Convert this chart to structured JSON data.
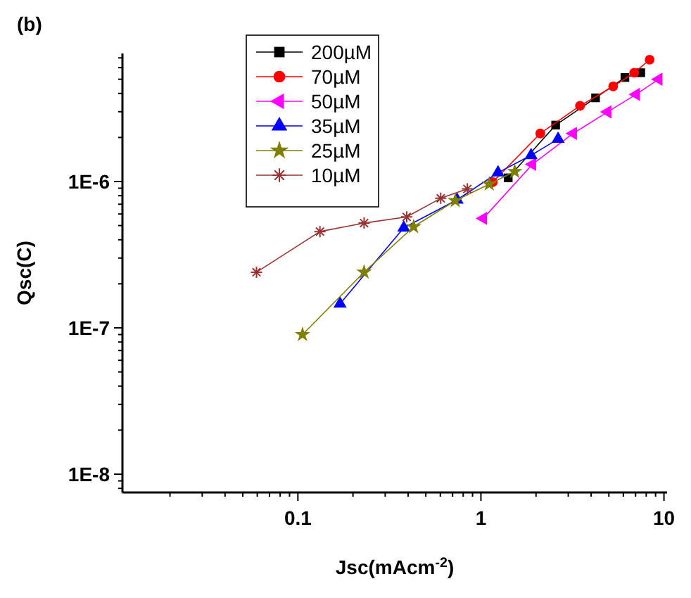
{
  "chart_data": {
    "type": "line",
    "title": "(b)",
    "xlabel": "Jsc(mAcm$^{-2}$)",
    "ylabel": "Qsc(C)",
    "log": "xy",
    "grid": false,
    "legend": "top left",
    "xlim": [
      0.011,
      10.4
    ],
    "ylim": [
      7.5e-09,
      7.5e-06
    ],
    "xticks": [
      {
        "value": 0.02,
        "label": null
      },
      {
        "value": 0.03,
        "label": null
      },
      {
        "value": 0.04,
        "label": null
      },
      {
        "value": 0.05,
        "label": null
      },
      {
        "value": 0.06,
        "label": null
      },
      {
        "value": 0.07,
        "label": null
      },
      {
        "value": 0.08,
        "label": null
      },
      {
        "value": 0.09,
        "label": null
      },
      0.1,
      {
        "value": 0.2,
        "label": null
      },
      {
        "value": 0.3,
        "label": null
      },
      {
        "value": 0.4,
        "label": null
      },
      {
        "value": 0.5,
        "label": null
      },
      {
        "value": 0.6,
        "label": null
      },
      {
        "value": 0.7,
        "label": null
      },
      {
        "value": 0.8,
        "label": null
      },
      {
        "value": 0.9,
        "label": null
      },
      1,
      {
        "value": 2,
        "label": null
      },
      {
        "value": 3,
        "label": null
      },
      {
        "value": 4,
        "label": null
      },
      {
        "value": 5,
        "label": null
      },
      {
        "value": 6,
        "label": null
      },
      {
        "value": 7,
        "label": null
      },
      {
        "value": 8,
        "label": null
      },
      {
        "value": 9,
        "label": null
      },
      10
    ],
    "yticks": [
      {
        "value": 8e-09,
        "label": null
      },
      {
        "value": 9e-09,
        "label": null
      },
      {
        "value": 1e-08,
        "label": "1E-8"
      },
      {
        "value": 2e-08,
        "label": null
      },
      {
        "value": 3e-08,
        "label": null
      },
      {
        "value": 4e-08,
        "label": null
      },
      {
        "value": 5e-08,
        "label": null
      },
      {
        "value": 6e-08,
        "label": null
      },
      {
        "value": 7e-08,
        "label": null
      },
      {
        "value": 8e-08,
        "label": null
      },
      {
        "value": 9e-08,
        "label": null
      },
      {
        "value": 1e-07,
        "label": "1E-7"
      },
      {
        "value": 2e-07,
        "label": null
      },
      {
        "value": 3e-07,
        "label": null
      },
      {
        "value": 4e-07,
        "label": null
      },
      {
        "value": 5e-07,
        "label": null
      },
      {
        "value": 6e-07,
        "label": null
      },
      {
        "value": 7e-07,
        "label": null
      },
      {
        "value": 8e-07,
        "label": null
      },
      {
        "value": 9e-07,
        "label": null
      },
      {
        "value": 1e-06,
        "label": "1E-6"
      },
      {
        "value": 2e-06,
        "label": null
      },
      {
        "value": 3e-06,
        "label": null
      },
      {
        "value": 4e-06,
        "label": null
      },
      {
        "value": 5e-06,
        "label": null
      },
      {
        "value": 6e-06,
        "label": null
      },
      {
        "value": 7e-06,
        "label": null
      }
    ],
    "series": [
      {
        "name": "200µM",
        "color": "#000000",
        "marker": "square",
        "x": [
          1.41,
          2.56,
          4.23,
          6.12,
          7.47
        ],
        "values": [
          1.06e-06,
          2.43e-06,
          3.73e-06,
          5.14e-06,
          5.54e-06
        ]
      },
      {
        "name": "70µM",
        "color": "#ff0000",
        "marker": "circle",
        "x": [
          1.16,
          2.11,
          3.48,
          5.28,
          6.88,
          8.35
        ],
        "values": [
          9.9e-07,
          2.13e-06,
          3.29e-06,
          4.47e-06,
          5.54e-06,
          6.8e-06
        ]
      },
      {
        "name": "50µM",
        "color": "#ff00ff",
        "marker": "triangle-left",
        "x": [
          1.03,
          1.91,
          3.19,
          4.92,
          7.05,
          9.35
        ],
        "values": [
          5.6e-07,
          1.31e-06,
          2.13e-06,
          2.99e-06,
          3.94e-06,
          5e-06
        ]
      },
      {
        "name": "35µM",
        "color": "#0000ff",
        "marker": "triangle",
        "x": [
          0.17,
          0.379,
          0.741,
          1.24,
          1.88,
          2.64
        ],
        "values": [
          1.46e-07,
          4.83e-07,
          7.5e-07,
          1.15e-06,
          1.51e-06,
          1.95e-06
        ]
      },
      {
        "name": "25µM",
        "color": "#808000",
        "marker": "star",
        "x": [
          0.106,
          0.23,
          0.429,
          0.724,
          1.11,
          1.53
        ],
        "values": [
          9e-08,
          2.4e-07,
          4.91e-07,
          7.4e-07,
          9.6e-07,
          1.17e-06
        ]
      },
      {
        "name": "10µM",
        "color": "#993333",
        "marker": "cross",
        "x": [
          0.0594,
          0.132,
          0.23,
          0.393,
          0.603,
          0.843
        ],
        "values": [
          2.4e-07,
          4.55e-07,
          5.2e-07,
          5.73e-07,
          7.68e-07,
          8.9e-07
        ]
      }
    ]
  }
}
